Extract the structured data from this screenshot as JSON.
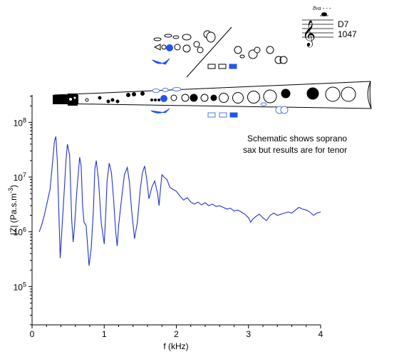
{
  "chart_data": {
    "type": "line",
    "title": "",
    "xlabel": "f (kHz)",
    "ylabel_main": "|Z| (Pa.s.m",
    "ylabel_sup": "-3",
    "ylabel_end": ")",
    "xlim": [
      0,
      4
    ],
    "ylim_log10": [
      4.3,
      8.5
    ],
    "y_scale": "log",
    "grid": false,
    "x_ticks": [
      0,
      1,
      2,
      3,
      4
    ],
    "x_tick_labels": [
      "0",
      "1",
      "2",
      "3",
      "4"
    ],
    "y_ticks_exp": [
      5,
      6,
      7,
      8
    ],
    "y_tick_base": "10",
    "y_tick_exps": [
      "5",
      "6",
      "7",
      "8"
    ],
    "series": [
      {
        "color": "#2233cc",
        "x": [
          0.1,
          0.13,
          0.17,
          0.21,
          0.25,
          0.28,
          0.31,
          0.33,
          0.35,
          0.37,
          0.39,
          0.42,
          0.45,
          0.47,
          0.49,
          0.52,
          0.55,
          0.57,
          0.59,
          0.62,
          0.66,
          0.68,
          0.7,
          0.72,
          0.75,
          0.79,
          0.82,
          0.85,
          0.87,
          0.89,
          0.92,
          0.96,
          1.0,
          1.02,
          1.04,
          1.07,
          1.1,
          1.13,
          1.16,
          1.18,
          1.2,
          1.24,
          1.28,
          1.32,
          1.35,
          1.38,
          1.42,
          1.46,
          1.5,
          1.53,
          1.56,
          1.59,
          1.62,
          1.66,
          1.7,
          1.74,
          1.76,
          1.78,
          1.8,
          1.83,
          1.87,
          1.91,
          1.95,
          2.0,
          2.05,
          2.1,
          2.15,
          2.2,
          2.25,
          2.3,
          2.35,
          2.4,
          2.45,
          2.5,
          2.55,
          2.6,
          2.65,
          2.7,
          2.75,
          2.8,
          2.85,
          2.9,
          2.95,
          3.0,
          3.03,
          3.06,
          3.1,
          3.15,
          3.2,
          3.25,
          3.3,
          3.35,
          3.4,
          3.45,
          3.5,
          3.55,
          3.6,
          3.65,
          3.7,
          3.75,
          3.8,
          3.85,
          3.9,
          3.95,
          4.0
        ],
        "y": [
          1000000.0,
          1300000.0,
          2000000.0,
          3500000.0,
          6000000.0,
          16000000.0,
          45000000.0,
          55000000.0,
          20000000.0,
          2500000.0,
          330000.0,
          1500000.0,
          7000000.0,
          20000000.0,
          40000000.0,
          25000000.0,
          1600000.0,
          650000.0,
          1300000.0,
          5500000.0,
          23000000.0,
          16000000.0,
          3000000.0,
          1500000.0,
          1300000.0,
          240000.0,
          500000.0,
          2500000.0,
          14000000.0,
          20000000.0,
          9000000.0,
          1400000.0,
          600000.0,
          2000000.0,
          8500000.0,
          18000000.0,
          12000000.0,
          4000000.0,
          1000000.0,
          550000.0,
          1300000.0,
          4000000.0,
          11000000.0,
          15000000.0,
          8000000.0,
          2500000.0,
          750000.0,
          1500000.0,
          6000000.0,
          12000000.0,
          16000000.0,
          9000000.0,
          4000000.0,
          6500000.0,
          8500000.0,
          5000000.0,
          3000000.0,
          6000000.0,
          11000000.0,
          10000000.0,
          9000000.0,
          6500000.0,
          6000000.0,
          5500000.0,
          4500000.0,
          3800000.0,
          4200000.0,
          3500000.0,
          3200000.0,
          3500000.0,
          3100000.0,
          3400000.0,
          3000000.0,
          3200000.0,
          2900000.0,
          3000000.0,
          2800000.0,
          2600000.0,
          2700000.0,
          2400000.0,
          2500000.0,
          2300000.0,
          2100000.0,
          1800000.0,
          1500000.0,
          1700000.0,
          1900000.0,
          2100000.0,
          1800000.0,
          1600000.0,
          2000000.0,
          2200000.0,
          2000000.0,
          2100000.0,
          2200000.0,
          2300000.0,
          2200000.0,
          2500000.0,
          2800000.0,
          2600000.0,
          2500000.0,
          2300000.0,
          2000000.0,
          2200000.0,
          2300000.0
        ]
      }
    ],
    "annotation": [
      "Schematic shows soprano",
      "sax but results are for tenor"
    ]
  },
  "inset": {
    "note_name": "D7",
    "frequency": "1047",
    "octave_mark": "8va - - -",
    "clef_glyph": "𝄞"
  },
  "colors": {
    "curve": "#2233cc",
    "highlight": "#2255ee",
    "outline_blue": "#5577dd"
  }
}
